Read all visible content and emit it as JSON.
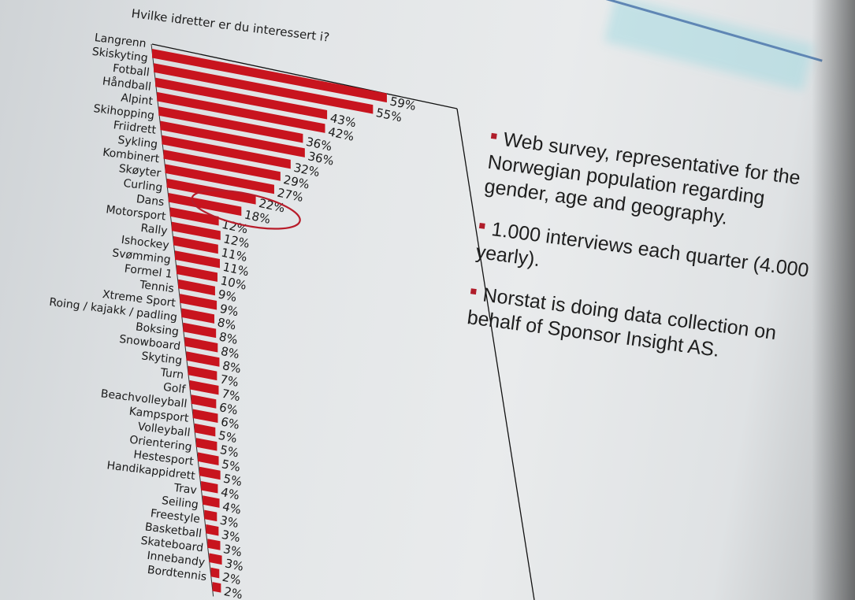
{
  "chart_data": {
    "type": "bar",
    "orientation": "horizontal",
    "title": "Hvilke idretter er du interessert i?",
    "categories": [
      "Langrenn",
      "Skiskyting",
      "Fotball",
      "Håndball",
      "Alpint",
      "Skihopping",
      "Friidrett",
      "Sykling",
      "Kombinert",
      "Skøyter",
      "Curling",
      "Dans",
      "Motorsport",
      "Rally",
      "Ishockey",
      "Svømming",
      "Formel 1",
      "Tennis",
      "Xtreme Sport",
      "Roing / kajakk / padling",
      "Boksing",
      "Snowboard",
      "Skyting",
      "Turn",
      "Golf",
      "Beachvolleyball",
      "Kampsport",
      "Volleyball",
      "Orientering",
      "Hestesport",
      "Handikappidrett",
      "Trav",
      "Seiling",
      "Freestyle",
      "Basketball",
      "Skateboard",
      "Innebandy",
      "Bordtennis"
    ],
    "values": [
      59,
      55,
      43,
      42,
      36,
      36,
      32,
      29,
      27,
      22,
      18,
      12,
      12,
      11,
      11,
      10,
      9,
      9,
      8,
      8,
      8,
      8,
      7,
      7,
      6,
      6,
      5,
      5,
      5,
      5,
      4,
      4,
      3,
      3,
      3,
      3,
      2,
      2
    ],
    "value_suffix": "%",
    "bar_color": "#c8141e",
    "highlighted_categories": [
      "Skøyter",
      "Curling",
      "Dans"
    ],
    "highlight_color": "#b81c2a",
    "xlim": [
      0,
      70
    ]
  },
  "bullets": [
    "Web survey, representative for the Norwegian population regarding gender, age and geography.",
    "1.000 interviews each quarter (4.000 yearly).",
    "Norstat is doing data collection on behalf of Sponsor Insight AS."
  ],
  "colors": {
    "bullet_mark": "#b01d2a",
    "accent_line": "#5f86b4"
  }
}
